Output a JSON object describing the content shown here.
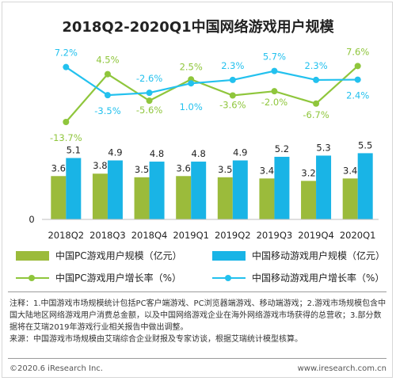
{
  "title": "2018Q2-2020Q1中国网络游戏用户规模",
  "chart_data": {
    "type": "bar",
    "categories": [
      "2018Q2",
      "2018Q3",
      "2018Q4",
      "2019Q1",
      "2019Q2",
      "2019Q3",
      "2019Q4",
      "2020Q1"
    ],
    "y_axis_tick": "0",
    "bar_series": [
      {
        "name": "中国PC游戏用户规模（亿元）",
        "color": "#9bbb3b",
        "values": [
          3.6,
          3.8,
          3.5,
          3.6,
          3.5,
          3.4,
          3.2,
          3.4
        ]
      },
      {
        "name": "中国移动游戏用户规模（亿元）",
        "color": "#19b4e6",
        "values": [
          5.1,
          4.9,
          4.8,
          4.8,
          4.9,
          5.2,
          5.3,
          5.5
        ]
      }
    ],
    "line_series": [
      {
        "name": "中国PC游戏用户增长率（%）",
        "color": "#8fc63c",
        "values": [
          -13.7,
          4.5,
          -5.6,
          2.5,
          -3.6,
          -2.0,
          -6.7,
          7.6
        ],
        "labels": [
          "-13.7%",
          "4.5%",
          "-5.6%",
          "2.5%",
          "-3.6%",
          "-2.0%",
          "-6.7%",
          "7.6%"
        ]
      },
      {
        "name": "中国移动游戏用户增长率（%）",
        "color": "#23c1ee",
        "values": [
          7.2,
          -3.5,
          -2.6,
          1.0,
          2.3,
          5.7,
          2.3,
          2.4
        ],
        "labels": [
          "7.2%",
          "-3.5%",
          "-2.6%",
          "1.0%",
          "2.3%",
          "5.7%",
          "2.3%",
          "2.4%"
        ]
      }
    ]
  },
  "notes": {
    "line1": "注释：1.中国游戏市场规模统计包括PC客户端游戏、PC浏览器端游戏、移动端游戏；2.游戏市场规模包含中国大陆地区网络游戏用户消费总金额，以及中国网络游戏企业在海外网络游戏市场获得的总营收；3.部分数据将在艾瑞2019年游戏行业相关报告中做出调整。",
    "line2": "来源：中国游戏市场规模由艾瑞综合企业财报及专家访谈，根据艾瑞统计模型核算。"
  },
  "footer": {
    "left": "©2020.6 iResearch Inc.",
    "right": "www.iresearch.com.cn"
  }
}
